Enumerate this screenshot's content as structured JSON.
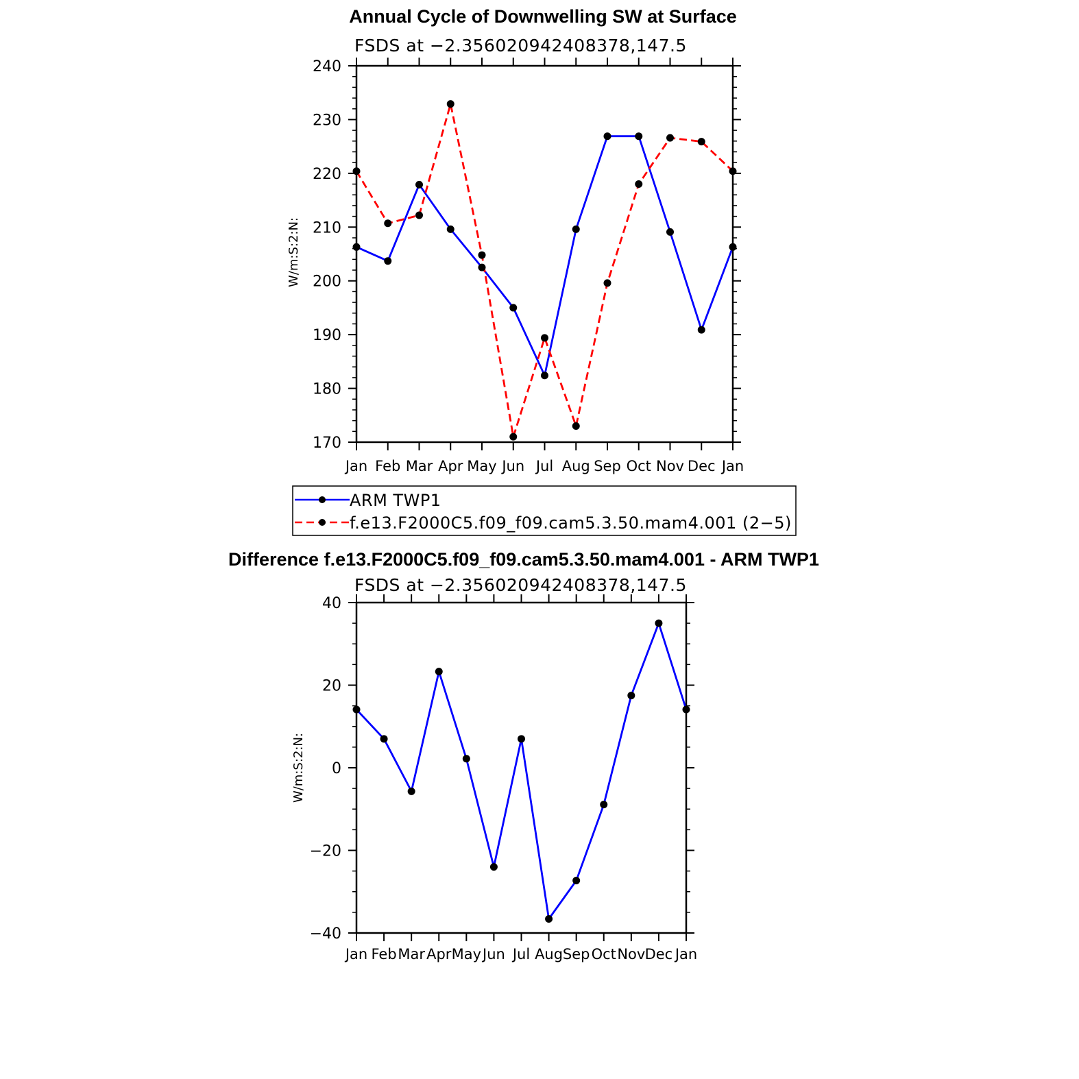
{
  "chart_data": [
    {
      "type": "line",
      "title": "Annual Cycle of Downwelling SW at Surface",
      "subtitle": "FSDS at −2.356020942408378,147.5",
      "ylabel": "W/m:S:2:N:",
      "xlabel": "",
      "categories": [
        "Jan",
        "Feb",
        "Mar",
        "Apr",
        "May",
        "Jun",
        "Jul",
        "Aug",
        "Sep",
        "Oct",
        "Nov",
        "Dec",
        "Jan"
      ],
      "ylim": [
        170,
        240
      ],
      "yticks": [
        "170",
        "180",
        "190",
        "200",
        "210",
        "220",
        "230",
        "240"
      ],
      "grid": false,
      "legend_position": "bottom",
      "series": [
        {
          "name": "ARM  TWP1",
          "color": "#0000ff",
          "dash": "solid",
          "values": [
            206.3,
            203.7,
            217.9,
            209.6,
            202.5,
            195.0,
            182.4,
            209.6,
            226.9,
            226.9,
            209.1,
            190.9,
            206.3
          ]
        },
        {
          "name": "f.e13.F2000C5.f09_f09.cam5.3.50.mam4.001  (2−5)",
          "color": "#ff0000",
          "dash": "dashed",
          "values": [
            220.4,
            210.7,
            212.2,
            232.9,
            204.8,
            171.0,
            189.4,
            173.0,
            199.6,
            218.0,
            226.6,
            225.9,
            220.4
          ]
        }
      ]
    },
    {
      "type": "line",
      "title": "Difference f.e13.F2000C5.f09_f09.cam5.3.50.mam4.001 - ARM TWP1",
      "subtitle": "FSDS at −2.356020942408378,147.5",
      "ylabel": "W/m:S:2:N:",
      "xlabel": "",
      "categories": [
        "Jan",
        "Feb",
        "Mar",
        "Apr",
        "May",
        "Jun",
        "Jul",
        "Aug",
        "Sep",
        "Oct",
        "Nov",
        "Dec",
        "Jan"
      ],
      "ylim": [
        -40,
        40
      ],
      "yticks": [
        "−40",
        "−20",
        "0",
        "20",
        "40"
      ],
      "grid": false,
      "series": [
        {
          "name": "",
          "color": "#0000ff",
          "dash": "solid",
          "values": [
            14.1,
            7.0,
            -5.7,
            23.3,
            2.2,
            -24.0,
            7.0,
            -36.6,
            -27.3,
            -8.9,
            17.5,
            35.0,
            14.1
          ]
        }
      ]
    }
  ]
}
